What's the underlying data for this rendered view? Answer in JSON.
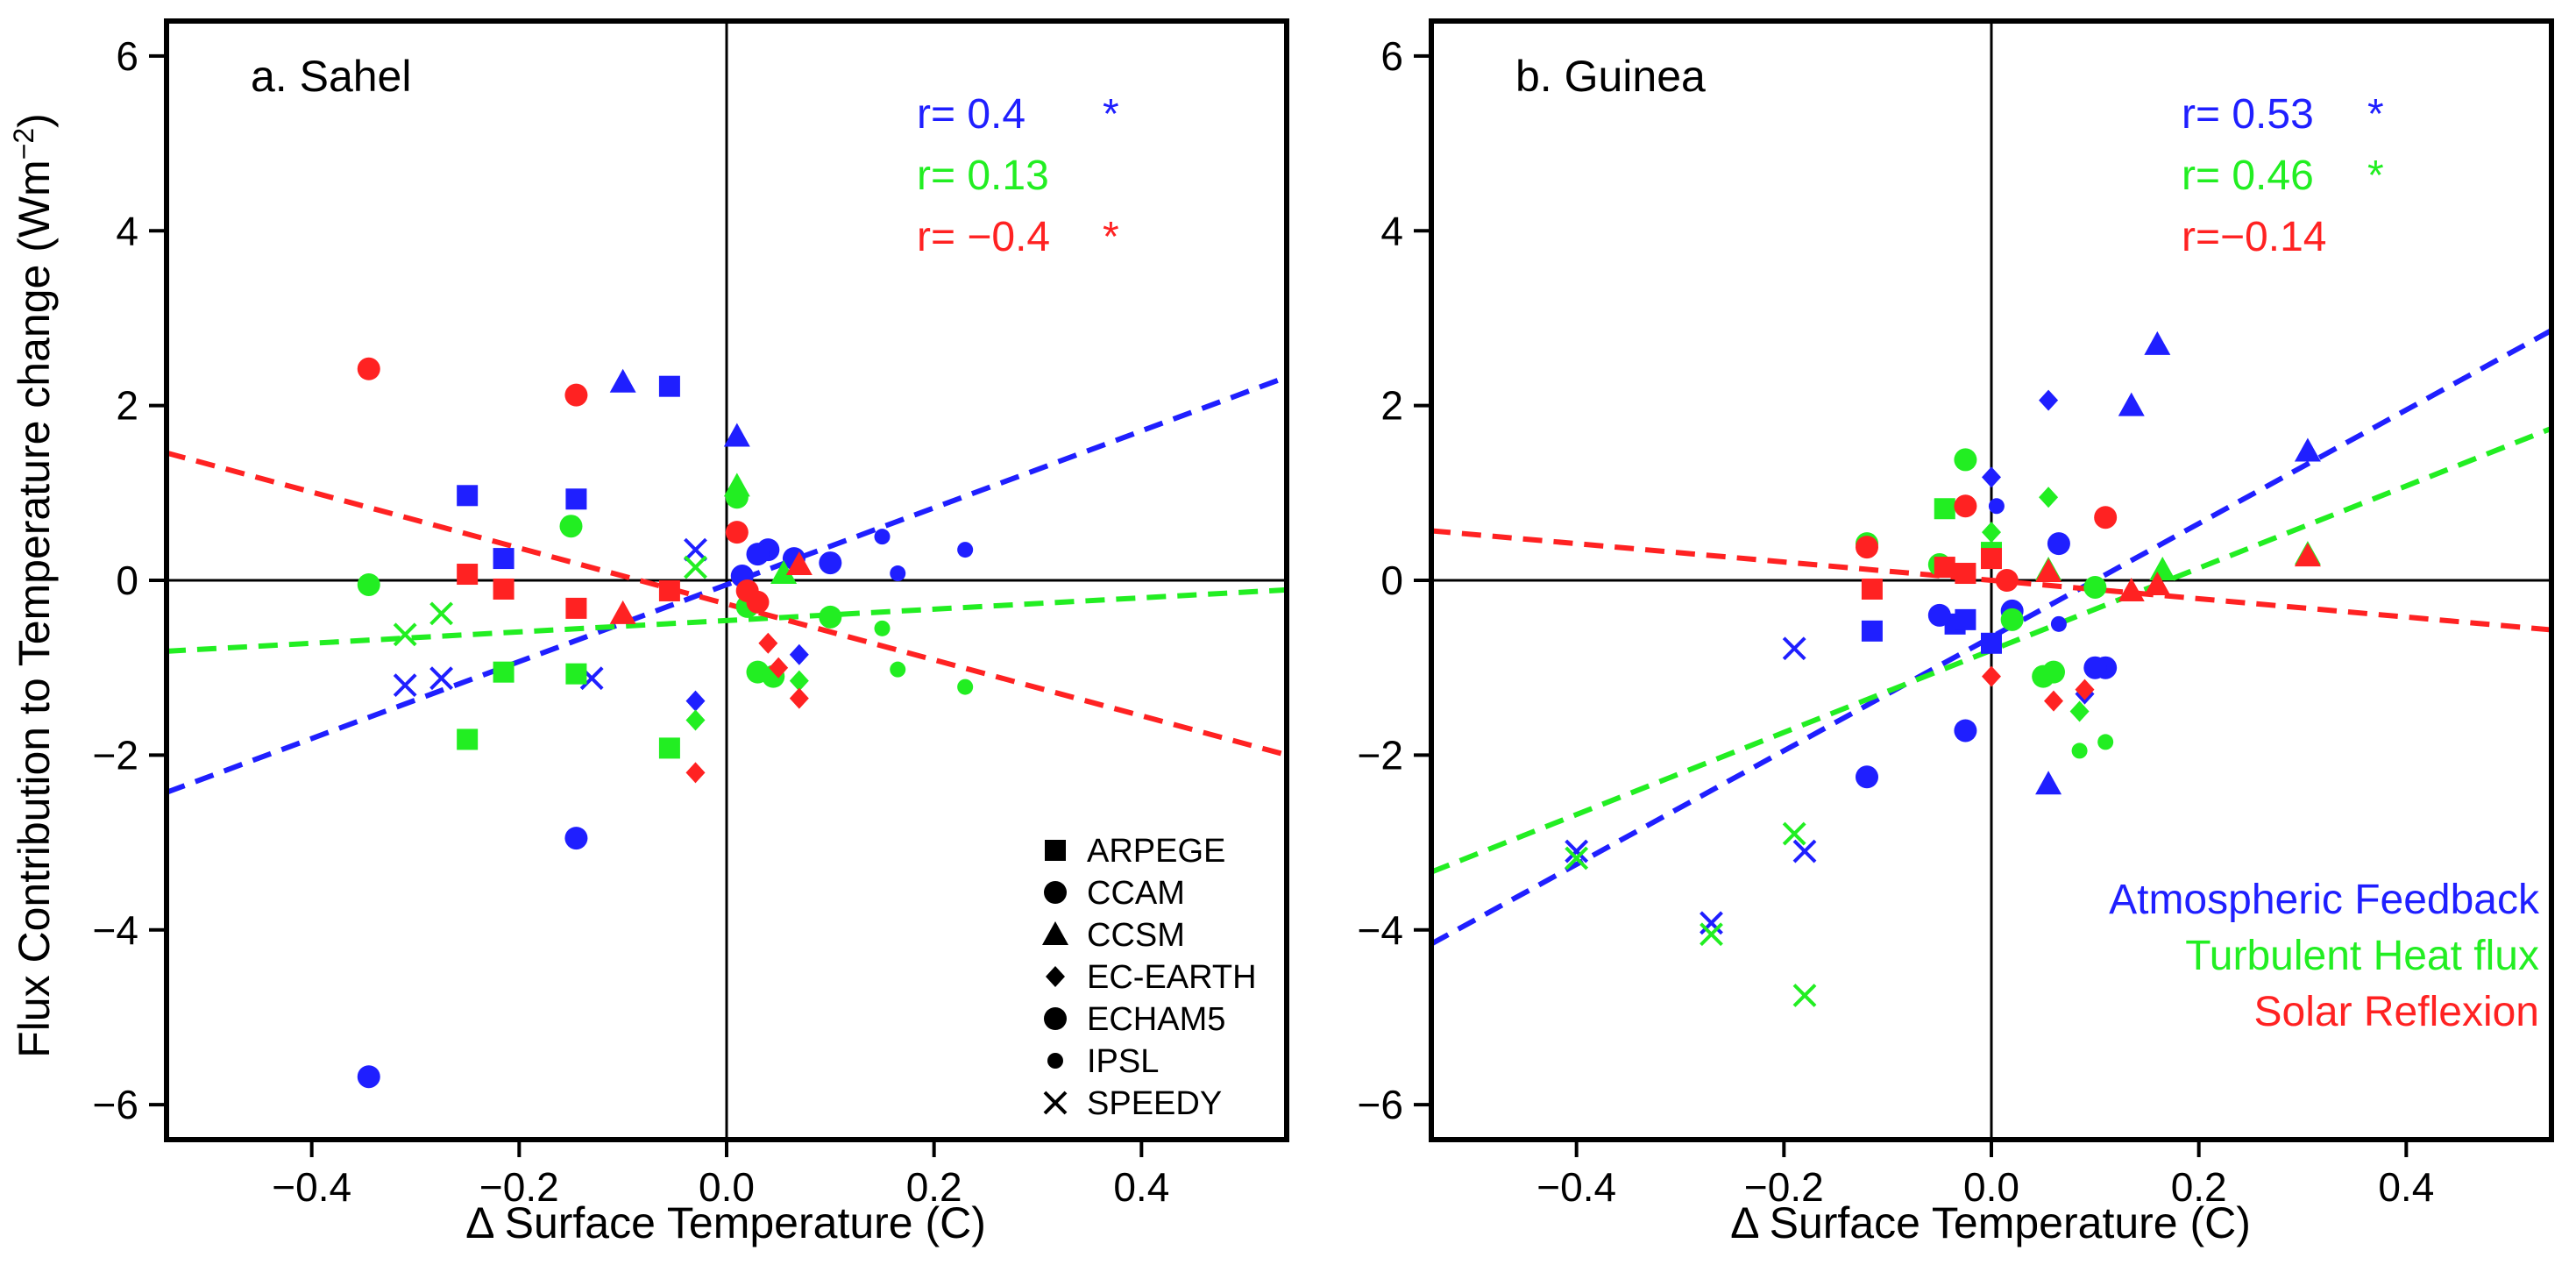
{
  "colors": {
    "atm": "#1f1fff",
    "turb": "#22ee22",
    "solar": "#ff2222"
  },
  "axes": {
    "xlabel": "Δ Surface Temperature (C)",
    "ylabel_main": "Flux Contribution to Temperature change (Wm",
    "ylabel_sup": "−2",
    "ylabel_close": ")"
  },
  "chart_data": [
    {
      "type": "scatter",
      "title": "a. Sahel",
      "xlim": [
        -0.54,
        0.54
      ],
      "ylim": [
        -6.4,
        6.4
      ],
      "xticks": [
        {
          "v": -0.4,
          "label": "−0.4"
        },
        {
          "v": -0.2,
          "label": "−0.2"
        },
        {
          "v": 0.0,
          "label": "0.0"
        },
        {
          "v": 0.2,
          "label": "0.2"
        },
        {
          "v": 0.4,
          "label": "0.4"
        }
      ],
      "yticks": [
        {
          "v": -6,
          "label": "−6"
        },
        {
          "v": -4,
          "label": "−4"
        },
        {
          "v": -2,
          "label": "−2"
        },
        {
          "v": 0,
          "label": "0"
        },
        {
          "v": 2,
          "label": "2"
        },
        {
          "v": 4,
          "label": "4"
        },
        {
          "v": 6,
          "label": "6"
        }
      ],
      "stats": [
        {
          "series": "atm",
          "label": "r=   0.4",
          "star": "*"
        },
        {
          "series": "turb",
          "label": "r=  0.13",
          "star": ""
        },
        {
          "series": "solar",
          "label": "r=  −0.4",
          "star": "*"
        }
      ],
      "fits": [
        {
          "series": "atm",
          "slope": 4.4,
          "intercept": -0.05
        },
        {
          "series": "turb",
          "slope": 0.65,
          "intercept": -0.46
        },
        {
          "series": "solar",
          "slope": -3.2,
          "intercept": -0.27
        }
      ],
      "points": [
        {
          "series": "atm",
          "model": "ARPEGE",
          "x": -0.25,
          "y": 0.97
        },
        {
          "series": "atm",
          "model": "ARPEGE",
          "x": -0.215,
          "y": 0.25
        },
        {
          "series": "atm",
          "model": "ARPEGE",
          "x": -0.145,
          "y": 0.93
        },
        {
          "series": "atm",
          "model": "ARPEGE",
          "x": -0.055,
          "y": 2.22
        },
        {
          "series": "atm",
          "model": "CCAM",
          "x": -0.345,
          "y": -5.68
        },
        {
          "series": "atm",
          "model": "CCAM",
          "x": -0.145,
          "y": -2.95
        },
        {
          "series": "atm",
          "model": "CCAM",
          "x": 0.04,
          "y": 0.35
        },
        {
          "series": "atm",
          "model": "CCAM",
          "x": 0.065,
          "y": 0.25
        },
        {
          "series": "atm",
          "model": "CCSM",
          "x": -0.1,
          "y": 2.27
        },
        {
          "series": "atm",
          "model": "CCSM",
          "x": 0.01,
          "y": 1.65
        },
        {
          "series": "atm",
          "model": "EC-EARTH",
          "x": -0.03,
          "y": -1.38
        },
        {
          "series": "atm",
          "model": "EC-EARTH",
          "x": 0.07,
          "y": -0.85
        },
        {
          "series": "atm",
          "model": "ECHAM5",
          "x": 0.015,
          "y": 0.05
        },
        {
          "series": "atm",
          "model": "ECHAM5",
          "x": 0.03,
          "y": 0.3
        },
        {
          "series": "atm",
          "model": "ECHAM5",
          "x": 0.1,
          "y": 0.2
        },
        {
          "series": "atm",
          "model": "IPSL",
          "x": 0.15,
          "y": 0.5
        },
        {
          "series": "atm",
          "model": "IPSL",
          "x": 0.165,
          "y": 0.08
        },
        {
          "series": "atm",
          "model": "IPSL",
          "x": 0.23,
          "y": 0.35
        },
        {
          "series": "atm",
          "model": "SPEEDY",
          "x": -0.31,
          "y": -1.2
        },
        {
          "series": "atm",
          "model": "SPEEDY",
          "x": -0.275,
          "y": -1.12
        },
        {
          "series": "atm",
          "model": "SPEEDY",
          "x": -0.13,
          "y": -1.12
        },
        {
          "series": "atm",
          "model": "SPEEDY",
          "x": -0.03,
          "y": 0.35
        },
        {
          "series": "turb",
          "model": "ARPEGE",
          "x": -0.25,
          "y": -1.82
        },
        {
          "series": "turb",
          "model": "ARPEGE",
          "x": -0.215,
          "y": -1.05
        },
        {
          "series": "turb",
          "model": "ARPEGE",
          "x": -0.145,
          "y": -1.07
        },
        {
          "series": "turb",
          "model": "ARPEGE",
          "x": -0.055,
          "y": -1.92
        },
        {
          "series": "turb",
          "model": "CCAM",
          "x": -0.345,
          "y": -0.05
        },
        {
          "series": "turb",
          "model": "CCAM",
          "x": -0.15,
          "y": 0.62
        },
        {
          "series": "turb",
          "model": "CCAM",
          "x": 0.03,
          "y": -1.05
        },
        {
          "series": "turb",
          "model": "CCAM",
          "x": 0.1,
          "y": -0.42
        },
        {
          "series": "turb",
          "model": "CCSM",
          "x": 0.01,
          "y": 1.08
        },
        {
          "series": "turb",
          "model": "CCSM",
          "x": 0.055,
          "y": 0.08
        },
        {
          "series": "turb",
          "model": "EC-EARTH",
          "x": -0.03,
          "y": -1.6
        },
        {
          "series": "turb",
          "model": "EC-EARTH",
          "x": 0.07,
          "y": -1.15
        },
        {
          "series": "turb",
          "model": "ECHAM5",
          "x": 0.01,
          "y": 0.95
        },
        {
          "series": "turb",
          "model": "ECHAM5",
          "x": 0.02,
          "y": -0.3
        },
        {
          "series": "turb",
          "model": "ECHAM5",
          "x": 0.045,
          "y": -1.1
        },
        {
          "series": "turb",
          "model": "IPSL",
          "x": 0.15,
          "y": -0.55
        },
        {
          "series": "turb",
          "model": "IPSL",
          "x": 0.165,
          "y": -1.02
        },
        {
          "series": "turb",
          "model": "IPSL",
          "x": 0.23,
          "y": -1.22
        },
        {
          "series": "turb",
          "model": "SPEEDY",
          "x": -0.31,
          "y": -0.62
        },
        {
          "series": "turb",
          "model": "SPEEDY",
          "x": -0.275,
          "y": -0.38
        },
        {
          "series": "turb",
          "model": "SPEEDY",
          "x": -0.03,
          "y": 0.15
        },
        {
          "series": "solar",
          "model": "ARPEGE",
          "x": -0.25,
          "y": 0.07
        },
        {
          "series": "solar",
          "model": "ARPEGE",
          "x": -0.215,
          "y": -0.1
        },
        {
          "series": "solar",
          "model": "ARPEGE",
          "x": -0.145,
          "y": -0.32
        },
        {
          "series": "solar",
          "model": "ARPEGE",
          "x": -0.055,
          "y": -0.12
        },
        {
          "series": "solar",
          "model": "CCAM",
          "x": -0.345,
          "y": 2.42
        },
        {
          "series": "solar",
          "model": "CCAM",
          "x": -0.145,
          "y": 2.12
        },
        {
          "series": "solar",
          "model": "CCAM",
          "x": 0.01,
          "y": 0.55
        },
        {
          "series": "solar",
          "model": "CCAM",
          "x": 0.03,
          "y": -0.25
        },
        {
          "series": "solar",
          "model": "CCSM",
          "x": -0.1,
          "y": -0.38
        },
        {
          "series": "solar",
          "model": "CCSM",
          "x": 0.07,
          "y": 0.18
        },
        {
          "series": "solar",
          "model": "EC-EARTH",
          "x": -0.03,
          "y": -2.2
        },
        {
          "series": "solar",
          "model": "EC-EARTH",
          "x": 0.04,
          "y": -0.72
        },
        {
          "series": "solar",
          "model": "EC-EARTH",
          "x": 0.05,
          "y": -1.0
        },
        {
          "series": "solar",
          "model": "EC-EARTH",
          "x": 0.07,
          "y": -1.35
        },
        {
          "series": "solar",
          "model": "ECHAM5",
          "x": 0.02,
          "y": -0.12
        }
      ]
    },
    {
      "type": "scatter",
      "title": "b. Guinea",
      "xlim": [
        -0.54,
        0.54
      ],
      "ylim": [
        -6.4,
        6.4
      ],
      "xticks": [
        {
          "v": -0.4,
          "label": "−0.4"
        },
        {
          "v": -0.2,
          "label": "−0.2"
        },
        {
          "v": 0.0,
          "label": "0.0"
        },
        {
          "v": 0.2,
          "label": "0.2"
        },
        {
          "v": 0.4,
          "label": "0.4"
        }
      ],
      "yticks": [
        {
          "v": -6,
          "label": "−6"
        },
        {
          "v": -4,
          "label": "−4"
        },
        {
          "v": -2,
          "label": "−2"
        },
        {
          "v": 0,
          "label": "0"
        },
        {
          "v": 2,
          "label": "2"
        },
        {
          "v": 4,
          "label": "4"
        },
        {
          "v": 6,
          "label": "6"
        }
      ],
      "stats": [
        {
          "series": "atm",
          "label": "r=  0.53",
          "star": "*"
        },
        {
          "series": "turb",
          "label": "r=  0.46",
          "star": "*"
        },
        {
          "series": "solar",
          "label": "r=−0.14",
          "star": ""
        }
      ],
      "fits": [
        {
          "series": "atm",
          "slope": 6.5,
          "intercept": -0.65
        },
        {
          "series": "turb",
          "slope": 4.7,
          "intercept": -0.8
        },
        {
          "series": "solar",
          "slope": -1.05,
          "intercept": 0.0
        }
      ],
      "points": [
        {
          "series": "atm",
          "model": "ARPEGE",
          "x": -0.115,
          "y": -0.58
        },
        {
          "series": "atm",
          "model": "ARPEGE",
          "x": -0.035,
          "y": -0.5
        },
        {
          "series": "atm",
          "model": "ARPEGE",
          "x": -0.025,
          "y": -0.45
        },
        {
          "series": "atm",
          "model": "ARPEGE",
          "x": 0.0,
          "y": -0.72
        },
        {
          "series": "atm",
          "model": "CCAM",
          "x": -0.12,
          "y": -2.25
        },
        {
          "series": "atm",
          "model": "CCAM",
          "x": -0.025,
          "y": -1.72
        },
        {
          "series": "atm",
          "model": "CCAM",
          "x": 0.065,
          "y": 0.42
        },
        {
          "series": "atm",
          "model": "CCAM",
          "x": 0.11,
          "y": -1.0
        },
        {
          "series": "atm",
          "model": "CCSM",
          "x": 0.055,
          "y": -2.33
        },
        {
          "series": "atm",
          "model": "CCSM",
          "x": 0.135,
          "y": 2.0
        },
        {
          "series": "atm",
          "model": "CCSM",
          "x": 0.16,
          "y": 2.7
        },
        {
          "series": "atm",
          "model": "CCSM",
          "x": 0.305,
          "y": 1.48
        },
        {
          "series": "atm",
          "model": "EC-EARTH",
          "x": 0.0,
          "y": 1.18
        },
        {
          "series": "atm",
          "model": "EC-EARTH",
          "x": 0.055,
          "y": 2.06
        },
        {
          "series": "atm",
          "model": "EC-EARTH",
          "x": 0.09,
          "y": -1.3
        },
        {
          "series": "atm",
          "model": "ECHAM5",
          "x": -0.05,
          "y": -0.4
        },
        {
          "series": "atm",
          "model": "ECHAM5",
          "x": 0.02,
          "y": -0.35
        },
        {
          "series": "atm",
          "model": "ECHAM5",
          "x": 0.1,
          "y": -1.0
        },
        {
          "series": "atm",
          "model": "IPSL",
          "x": 0.005,
          "y": 0.85
        },
        {
          "series": "atm",
          "model": "IPSL",
          "x": 0.065,
          "y": -0.5
        },
        {
          "series": "atm",
          "model": "SPEEDY",
          "x": -0.4,
          "y": -3.1
        },
        {
          "series": "atm",
          "model": "SPEEDY",
          "x": -0.27,
          "y": -3.92
        },
        {
          "series": "atm",
          "model": "SPEEDY",
          "x": -0.19,
          "y": -0.78
        },
        {
          "series": "atm",
          "model": "SPEEDY",
          "x": -0.18,
          "y": -3.1
        },
        {
          "series": "turb",
          "model": "ARPEGE",
          "x": -0.045,
          "y": 0.82
        },
        {
          "series": "turb",
          "model": "ARPEGE",
          "x": 0.0,
          "y": 0.32
        },
        {
          "series": "turb",
          "model": "CCAM",
          "x": -0.12,
          "y": 0.42
        },
        {
          "series": "turb",
          "model": "CCAM",
          "x": -0.025,
          "y": 1.38
        },
        {
          "series": "turb",
          "model": "CCAM",
          "x": 0.06,
          "y": -1.05
        },
        {
          "series": "turb",
          "model": "CCAM",
          "x": 0.1,
          "y": -0.08
        },
        {
          "series": "turb",
          "model": "CCSM",
          "x": 0.055,
          "y": 0.12
        },
        {
          "series": "turb",
          "model": "CCSM",
          "x": 0.165,
          "y": 0.12
        },
        {
          "series": "turb",
          "model": "CCSM",
          "x": 0.305,
          "y": 0.3
        },
        {
          "series": "turb",
          "model": "EC-EARTH",
          "x": 0.0,
          "y": 0.55
        },
        {
          "series": "turb",
          "model": "EC-EARTH",
          "x": 0.055,
          "y": 0.95
        },
        {
          "series": "turb",
          "model": "EC-EARTH",
          "x": 0.085,
          "y": -1.5
        },
        {
          "series": "turb",
          "model": "ECHAM5",
          "x": -0.05,
          "y": 0.18
        },
        {
          "series": "turb",
          "model": "ECHAM5",
          "x": 0.02,
          "y": -0.45
        },
        {
          "series": "turb",
          "model": "ECHAM5",
          "x": 0.05,
          "y": -1.1
        },
        {
          "series": "turb",
          "model": "IPSL",
          "x": 0.085,
          "y": -1.95
        },
        {
          "series": "turb",
          "model": "IPSL",
          "x": 0.11,
          "y": -1.85
        },
        {
          "series": "turb",
          "model": "SPEEDY",
          "x": -0.4,
          "y": -3.18
        },
        {
          "series": "turb",
          "model": "SPEEDY",
          "x": -0.27,
          "y": -4.05
        },
        {
          "series": "turb",
          "model": "SPEEDY",
          "x": -0.19,
          "y": -2.9
        },
        {
          "series": "turb",
          "model": "SPEEDY",
          "x": -0.18,
          "y": -4.75
        },
        {
          "series": "solar",
          "model": "ARPEGE",
          "x": -0.115,
          "y": -0.1
        },
        {
          "series": "solar",
          "model": "ARPEGE",
          "x": -0.045,
          "y": 0.15
        },
        {
          "series": "solar",
          "model": "ARPEGE",
          "x": -0.025,
          "y": 0.08
        },
        {
          "series": "solar",
          "model": "ARPEGE",
          "x": 0.0,
          "y": 0.25
        },
        {
          "series": "solar",
          "model": "CCAM",
          "x": -0.12,
          "y": 0.38
        },
        {
          "series": "solar",
          "model": "CCAM",
          "x": -0.025,
          "y": 0.85
        },
        {
          "series": "solar",
          "model": "CCAM",
          "x": 0.11,
          "y": 0.72
        },
        {
          "series": "solar",
          "model": "CCSM",
          "x": 0.055,
          "y": 0.1
        },
        {
          "series": "solar",
          "model": "CCSM",
          "x": 0.135,
          "y": -0.12
        },
        {
          "series": "solar",
          "model": "CCSM",
          "x": 0.16,
          "y": -0.05
        },
        {
          "series": "solar",
          "model": "CCSM",
          "x": 0.305,
          "y": 0.28
        },
        {
          "series": "solar",
          "model": "EC-EARTH",
          "x": 0.0,
          "y": -1.1
        },
        {
          "series": "solar",
          "model": "EC-EARTH",
          "x": 0.06,
          "y": -1.38
        },
        {
          "series": "solar",
          "model": "EC-EARTH",
          "x": 0.09,
          "y": -1.25
        },
        {
          "series": "solar",
          "model": "ECHAM5",
          "x": 0.015,
          "y": 0.0
        }
      ]
    }
  ],
  "legend": {
    "models": [
      {
        "name": "ARPEGE",
        "shape": "square"
      },
      {
        "name": "CCAM",
        "shape": "circle"
      },
      {
        "name": "CCSM",
        "shape": "triangle"
      },
      {
        "name": "EC-EARTH",
        "shape": "diamond"
      },
      {
        "name": "ECHAM5",
        "shape": "circle"
      },
      {
        "name": "IPSL",
        "shape": "small-circle"
      },
      {
        "name": "SPEEDY",
        "shape": "cross"
      }
    ],
    "series": [
      {
        "key": "atm",
        "label": "Atmospheric Feedback"
      },
      {
        "key": "turb",
        "label": "Turbulent Heat flux"
      },
      {
        "key": "solar",
        "label": "Solar Reflexion"
      }
    ]
  }
}
